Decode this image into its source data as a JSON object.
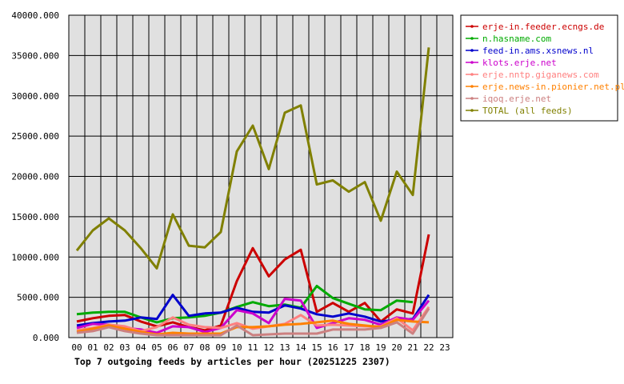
{
  "chart_data": {
    "type": "line",
    "title": "Top 7 outgoing feeds by articles per hour (20251225 2307)",
    "xlabel": "",
    "ylabel": "",
    "categories": [
      "00",
      "01",
      "02",
      "03",
      "04",
      "05",
      "06",
      "07",
      "08",
      "09",
      "10",
      "11",
      "12",
      "13",
      "14",
      "15",
      "16",
      "17",
      "18",
      "19",
      "20",
      "21",
      "22",
      "23"
    ],
    "y_ticks": [
      "0.000",
      "5000.000",
      "10000.000",
      "15000.000",
      "20000.000",
      "25000.000",
      "30000.000",
      "35000.000",
      "40000.000"
    ],
    "ylim": [
      0,
      40000
    ],
    "grid": true,
    "legend_position": "top-right",
    "series": [
      {
        "name": "erje-in.feeder.ecngs.de",
        "color": "#cc0000",
        "values": [
          2000,
          2400,
          2700,
          2800,
          2000,
          1400,
          1900,
          1300,
          900,
          1500,
          7000,
          11100,
          7600,
          9700,
          10900,
          3200,
          4300,
          3200,
          4300,
          2000,
          3500,
          3000,
          12800,
          null
        ]
      },
      {
        "name": "n.hasname.com",
        "color": "#00aa00",
        "values": [
          2900,
          3100,
          3200,
          3200,
          2500,
          1900,
          2400,
          2500,
          2700,
          3100,
          3800,
          4400,
          3900,
          4100,
          3700,
          6400,
          4900,
          4200,
          3500,
          3400,
          4600,
          4400,
          null,
          null
        ]
      },
      {
        "name": "feed-in.ams.xsnews.nl",
        "color": "#0000cc",
        "values": [
          1500,
          1800,
          2000,
          2100,
          2500,
          2300,
          5300,
          2700,
          3000,
          3100,
          3700,
          3200,
          3100,
          4000,
          3600,
          2900,
          2600,
          3000,
          2600,
          2000,
          2200,
          2300,
          5300,
          null
        ]
      },
      {
        "name": "klots.erje.net",
        "color": "#cc00cc",
        "values": [
          1200,
          1700,
          1600,
          1200,
          1000,
          600,
          1400,
          1300,
          700,
          1200,
          3400,
          3000,
          1800,
          4800,
          4600,
          1200,
          1800,
          2400,
          2200,
          1600,
          2500,
          2200,
          4600,
          null
        ]
      },
      {
        "name": "erje.nntp.giganews.com",
        "color": "#ff8080",
        "values": [
          900,
          1200,
          1600,
          1400,
          800,
          1300,
          2500,
          1600,
          1300,
          1200,
          1800,
          1100,
          1400,
          1700,
          2800,
          1500,
          1600,
          1500,
          1400,
          1400,
          2400,
          900,
          3800,
          null
        ]
      },
      {
        "name": "erje.news-in.pionier.net.pl",
        "color": "#ff8000",
        "values": [
          700,
          1100,
          1500,
          1100,
          700,
          400,
          600,
          500,
          500,
          500,
          1300,
          1300,
          1400,
          1600,
          1700,
          1900,
          2100,
          1700,
          1500,
          1300,
          2200,
          2000,
          1900,
          null
        ]
      },
      {
        "name": "iqoq.erje.net",
        "color": "#cc8080",
        "values": [
          600,
          800,
          1300,
          800,
          500,
          300,
          300,
          300,
          300,
          300,
          1500,
          300,
          400,
          500,
          500,
          500,
          1000,
          1000,
          1000,
          1200,
          1900,
          500,
          3600,
          null
        ]
      },
      {
        "name": "TOTAL (all feeds)",
        "color": "#808000",
        "values": [
          10800,
          13300,
          14800,
          13300,
          11100,
          8600,
          15300,
          11400,
          11200,
          13100,
          23100,
          26300,
          20900,
          27900,
          28800,
          19000,
          19500,
          18100,
          19300,
          14500,
          20600,
          17700,
          36000,
          null
        ]
      }
    ]
  }
}
